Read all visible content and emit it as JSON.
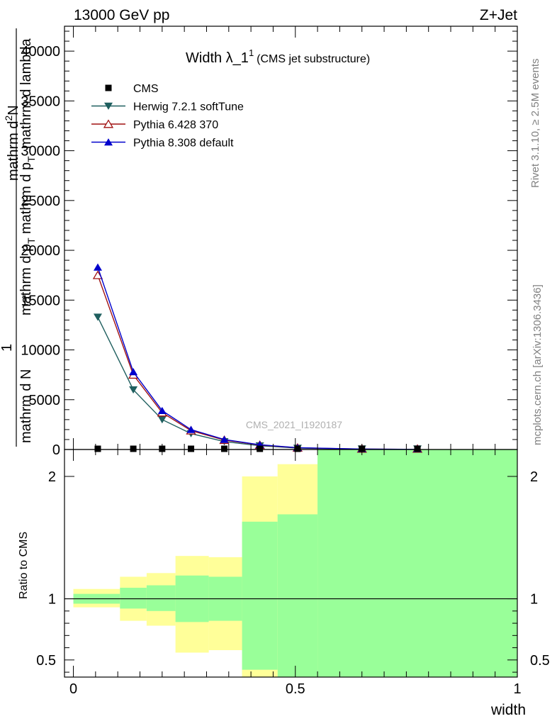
{
  "header": {
    "left": "13000 GeV pp",
    "right": "Z+Jet"
  },
  "title": {
    "main": "Width λ_1",
    "superscript": "1",
    "sub": "(CMS jet substructure)"
  },
  "side": {
    "rivet": "Rivet 3.1.10, ≥ 2.5M events",
    "mcplots": "mcplots.cern.ch [arXiv:1306.3436]"
  },
  "watermark": "CMS_2021_I1920187",
  "ylabel_main": {
    "numerator": "1",
    "line1": "mathrm d N",
    "line2": "mathrm d p",
    "line2_sub": "T",
    "line3": "mathrm d p",
    "line3_sub": "T",
    "line4": "mathrm d lambda",
    "line5": "mathrm d",
    "line5_sup": "2",
    "line5b": "N"
  },
  "ylabel_ratio": "Ratio to CMS",
  "xlabel": "width",
  "colors": {
    "cms": "#000000",
    "herwig": "#1f5f5f",
    "pythia6": "#a01010",
    "pythia8": "#0000cc",
    "band_inner": "#99ff99",
    "band_outer": "#ffff99"
  },
  "chart_data": [
    {
      "type": "line",
      "xlim": [
        -0.02,
        1.0
      ],
      "ylim": [
        0,
        42500
      ],
      "yticks": [
        0,
        5000,
        10000,
        15000,
        20000,
        25000,
        30000,
        35000,
        40000
      ],
      "ytick_labels": [
        "0",
        "5000",
        "10000",
        "15000",
        "20000",
        "25000",
        "30000",
        "35000",
        "40000"
      ],
      "legend_position": "top-left",
      "series": [
        {
          "name": "CMS",
          "marker": "square",
          "x": [
            0.055,
            0.135,
            0.2,
            0.265,
            0.34,
            0.42,
            0.505,
            0.65,
            0.775
          ],
          "y": [
            0,
            0,
            0,
            0,
            0,
            0,
            0,
            0,
            0
          ]
        },
        {
          "name": "Herwig 7.2.1 softTune",
          "marker": "triangle-down",
          "x": [
            0.055,
            0.135,
            0.2,
            0.265,
            0.34,
            0.42,
            0.505,
            0.65,
            0.775
          ],
          "y": [
            13300,
            6000,
            3000,
            1600,
            800,
            380,
            140,
            30,
            10
          ]
        },
        {
          "name": "Pythia 6.428 370",
          "marker": "triangle-up-open",
          "x": [
            0.055,
            0.135,
            0.2,
            0.265,
            0.34,
            0.42,
            0.505,
            0.65,
            0.775
          ],
          "y": [
            17500,
            7500,
            3700,
            1900,
            950,
            450,
            170,
            40,
            15
          ]
        },
        {
          "name": "Pythia 8.308 default",
          "marker": "triangle-up",
          "x": [
            0.055,
            0.135,
            0.2,
            0.265,
            0.34,
            0.42,
            0.505,
            0.65,
            0.775
          ],
          "y": [
            18300,
            7800,
            3900,
            2000,
            1000,
            480,
            180,
            45,
            15
          ]
        }
      ]
    },
    {
      "type": "area",
      "xlim": [
        -0.02,
        1.0
      ],
      "ylim": [
        0.36,
        2.22
      ],
      "yticks": [
        0.5,
        1,
        2
      ],
      "ytick_labels": [
        "0.5",
        "1",
        "2"
      ],
      "xticks": [
        0,
        0.5,
        1
      ],
      "xtick_labels": [
        "0",
        "0.5",
        "1"
      ],
      "reference_line": 1,
      "bins": [
        {
          "lo": 0.0,
          "hi": 0.105,
          "inner": [
            0.96,
            1.04
          ],
          "outer": [
            0.93,
            1.08
          ]
        },
        {
          "lo": 0.105,
          "hi": 0.165,
          "inner": [
            0.92,
            1.09
          ],
          "outer": [
            0.82,
            1.18
          ]
        },
        {
          "lo": 0.165,
          "hi": 0.23,
          "inner": [
            0.9,
            1.11
          ],
          "outer": [
            0.78,
            1.21
          ]
        },
        {
          "lo": 0.23,
          "hi": 0.305,
          "inner": [
            0.81,
            1.19
          ],
          "outer": [
            0.56,
            1.35
          ]
        },
        {
          "lo": 0.305,
          "hi": 0.38,
          "inner": [
            0.82,
            1.18
          ],
          "outer": [
            0.58,
            1.34
          ]
        },
        {
          "lo": 0.38,
          "hi": 0.46,
          "inner": [
            0.36,
            1.63
          ],
          "outer": [
            0.36,
            2.0
          ]
        },
        {
          "lo": 0.46,
          "hi": 0.55,
          "inner": [
            0.36,
            1.69
          ],
          "outer": [
            0.36,
            2.1
          ]
        },
        {
          "lo": 0.55,
          "hi": 1.0,
          "inner": [
            0.36,
            2.22
          ],
          "outer": [
            0.36,
            2.22
          ]
        }
      ],
      "outer_only_low": [
        {
          "lo": 0.38,
          "hi": 0.46,
          "range": [
            0.36,
            0.42
          ]
        }
      ]
    }
  ]
}
